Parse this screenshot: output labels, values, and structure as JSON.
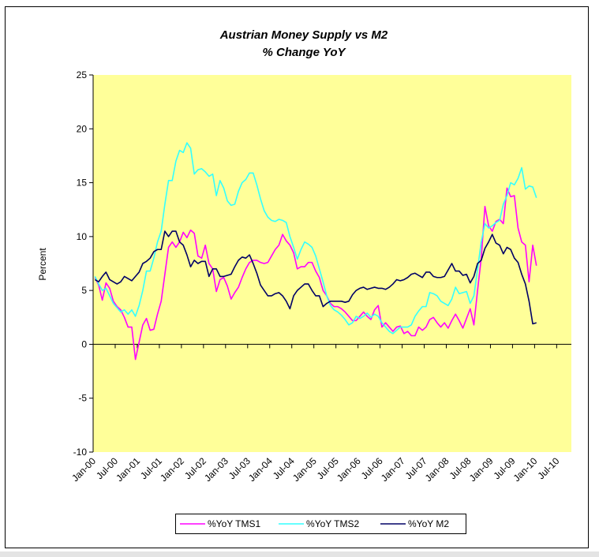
{
  "chart_data": {
    "type": "line",
    "title": "Austrian Money Supply vs M2",
    "subtitle": "% Change YoY",
    "y_label": "Percent",
    "categories": [
      "Jan-00",
      null,
      null,
      null,
      null,
      null,
      "Jul-00",
      null,
      null,
      null,
      null,
      null,
      "Jan-01",
      null,
      null,
      null,
      null,
      null,
      "Jul-01",
      null,
      null,
      null,
      null,
      null,
      "Jan-02",
      null,
      null,
      null,
      null,
      null,
      "Jul-02",
      null,
      null,
      null,
      null,
      null,
      "Jan-03",
      null,
      null,
      null,
      null,
      null,
      "Jul-03",
      null,
      null,
      null,
      null,
      null,
      "Jan-04",
      null,
      null,
      null,
      null,
      null,
      "Jul-04",
      null,
      null,
      null,
      null,
      null,
      "Jan-05",
      null,
      null,
      null,
      null,
      null,
      "Jul-05",
      null,
      null,
      null,
      null,
      null,
      "Jan-06",
      null,
      null,
      null,
      null,
      null,
      "Jul-06",
      null,
      null,
      null,
      null,
      null,
      "Jan-07",
      null,
      null,
      null,
      null,
      null,
      "Jul-07",
      null,
      null,
      null,
      null,
      null,
      "Jan-08",
      null,
      null,
      null,
      null,
      null,
      "Jul-08",
      null,
      null,
      null,
      null,
      null,
      "Jan-09",
      null,
      null,
      null,
      null,
      null,
      "Jul-09",
      null,
      null,
      null,
      null,
      null,
      "Jan-10",
      null,
      null,
      null,
      null,
      null,
      "Jul-10",
      null,
      null,
      null
    ],
    "series": [
      {
        "name": "%YoY TMS1",
        "color": "#ff00ff",
        "values": [
          6.2,
          5.5,
          4.1,
          5.7,
          5.2,
          4.0,
          3.5,
          3.2,
          2.5,
          1.6,
          1.6,
          -1.4,
          0.2,
          1.8,
          2.4,
          1.3,
          1.4,
          2.8,
          4.0,
          6.5,
          9.0,
          9.5,
          9.0,
          9.5,
          10.4,
          9.9,
          10.6,
          10.3,
          8.2,
          8.0,
          9.2,
          7.5,
          7.0,
          4.9,
          6.0,
          6.2,
          5.4,
          4.2,
          4.8,
          5.3,
          6.2,
          7.0,
          7.6,
          7.8,
          7.8,
          7.6,
          7.5,
          7.6,
          8.2,
          8.8,
          9.2,
          10.2,
          9.6,
          9.2,
          8.5,
          7.0,
          7.2,
          7.2,
          7.6,
          7.6,
          6.8,
          6.2,
          5.0,
          4.5,
          3.8,
          3.5,
          3.5,
          3.3,
          3.0,
          2.6,
          2.2,
          2.2,
          2.6,
          3.0,
          2.6,
          2.3,
          3.2,
          3.6,
          1.6,
          2.0,
          1.6,
          1.2,
          1.6,
          1.7,
          1.0,
          1.2,
          0.8,
          0.8,
          1.6,
          1.3,
          1.6,
          2.3,
          2.5,
          2.0,
          1.6,
          2.0,
          1.5,
          2.2,
          2.8,
          2.2,
          1.5,
          2.4,
          3.3,
          1.8,
          5.0,
          8.0,
          12.8,
          11.0,
          10.5,
          11.4,
          11.6,
          11.2,
          14.5,
          13.7,
          13.8,
          10.8,
          9.5,
          9.2,
          5.8,
          9.2,
          7.3,
          null,
          null,
          null,
          null,
          null,
          null,
          null,
          null,
          null
        ]
      },
      {
        "name": "%YoY TMS2",
        "color": "#33ffff",
        "values": [
          6.3,
          5.6,
          5.0,
          5.2,
          4.5,
          3.8,
          3.4,
          3.0,
          3.2,
          2.8,
          3.2,
          2.6,
          3.6,
          5.0,
          6.8,
          6.8,
          8.0,
          9.5,
          10.5,
          13.0,
          15.2,
          15.2,
          17.0,
          18.0,
          17.8,
          18.7,
          18.2,
          15.8,
          16.2,
          16.3,
          16.0,
          15.6,
          15.8,
          13.8,
          15.2,
          14.5,
          13.3,
          12.9,
          13.0,
          14.2,
          15.0,
          15.3,
          15.9,
          15.9,
          14.8,
          13.5,
          12.4,
          11.8,
          11.5,
          11.4,
          11.6,
          11.5,
          11.3,
          10.0,
          9.0,
          7.9,
          8.8,
          9.5,
          9.3,
          9.0,
          8.2,
          7.0,
          5.8,
          4.5,
          3.6,
          3.2,
          3.0,
          2.7,
          2.3,
          1.8,
          2.0,
          2.6,
          2.4,
          2.6,
          2.9,
          2.5,
          2.8,
          2.6,
          2.0,
          1.6,
          1.2,
          1.0,
          1.3,
          1.6,
          1.6,
          1.6,
          1.8,
          2.6,
          3.1,
          3.5,
          3.5,
          4.8,
          4.7,
          4.5,
          4.0,
          3.8,
          3.6,
          4.2,
          5.3,
          4.7,
          4.8,
          4.9,
          3.8,
          4.5,
          7.0,
          9.5,
          11.2,
          10.8,
          11.0,
          11.3,
          11.5,
          13.0,
          13.8,
          15.0,
          14.8,
          15.4,
          16.4,
          14.4,
          14.7,
          14.6,
          13.6,
          null,
          null,
          null,
          null,
          null,
          null,
          null,
          null,
          null
        ]
      },
      {
        "name": "%YoY M2",
        "color": "#000066",
        "values": [
          6.0,
          5.8,
          6.3,
          6.7,
          6.0,
          5.8,
          5.6,
          5.8,
          6.3,
          6.1,
          5.9,
          6.3,
          6.7,
          7.5,
          7.7,
          8.0,
          8.6,
          8.8,
          8.8,
          10.5,
          10.0,
          10.5,
          10.5,
          9.5,
          9.2,
          8.3,
          7.2,
          7.8,
          7.5,
          7.7,
          7.7,
          6.3,
          7.0,
          7.0,
          6.3,
          6.3,
          6.4,
          6.5,
          7.2,
          7.8,
          8.1,
          8.0,
          8.3,
          7.5,
          6.6,
          5.5,
          5.0,
          4.5,
          4.5,
          4.7,
          4.8,
          4.5,
          4.0,
          3.3,
          4.5,
          5.0,
          5.3,
          5.6,
          5.6,
          5.0,
          4.5,
          4.5,
          3.5,
          3.8,
          4.0,
          4.0,
          4.0,
          4.0,
          3.9,
          4.0,
          4.6,
          5.0,
          5.2,
          5.3,
          5.1,
          5.2,
          5.3,
          5.2,
          5.2,
          5.1,
          5.3,
          5.6,
          6.0,
          5.9,
          6.0,
          6.2,
          6.5,
          6.6,
          6.4,
          6.2,
          6.7,
          6.7,
          6.3,
          6.2,
          6.2,
          6.3,
          6.9,
          7.5,
          6.8,
          6.8,
          6.4,
          6.5,
          5.7,
          6.3,
          7.5,
          7.8,
          8.9,
          9.5,
          10.2,
          9.4,
          9.2,
          8.4,
          9.0,
          8.8,
          8.0,
          7.6,
          6.5,
          5.6,
          4.0,
          1.9,
          2.0,
          null,
          null,
          null,
          null,
          null,
          null,
          null,
          null,
          null
        ]
      }
    ],
    "ylim": [
      -10,
      25
    ],
    "yticks": [
      -10,
      -5,
      0,
      5,
      10,
      15,
      20,
      25
    ],
    "grid": false,
    "legend": "bottom",
    "plot_background": "#ffff99"
  }
}
